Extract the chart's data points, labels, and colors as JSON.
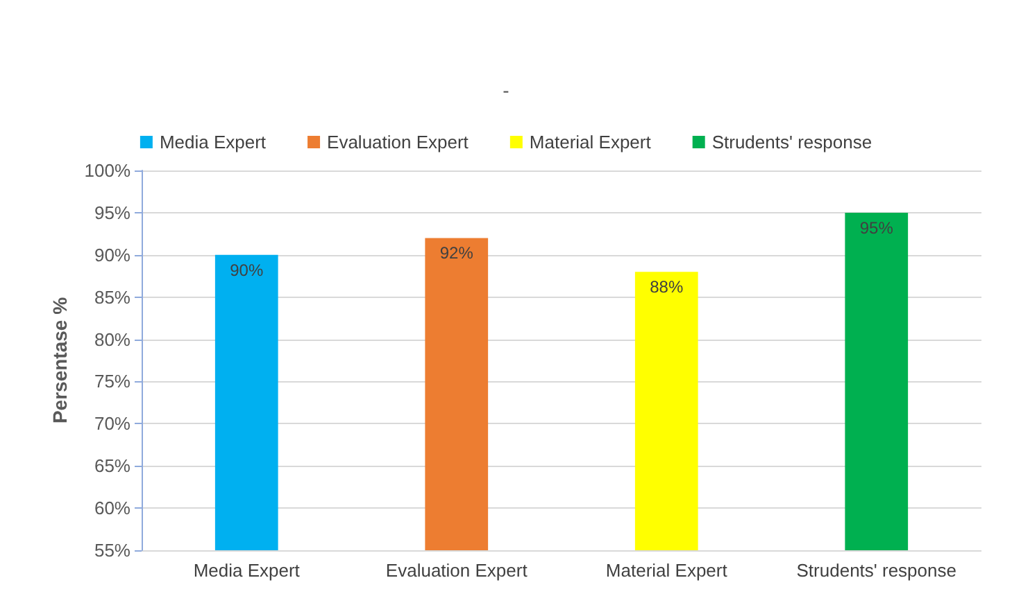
{
  "chart_data": {
    "type": "bar",
    "title": "-",
    "ylabel": "Persentase %",
    "categories": [
      "Media Expert",
      "Evaluation Expert",
      "Material Expert",
      "Strudents' response"
    ],
    "series": [
      {
        "name": "Media Expert",
        "color": "#00b0f0",
        "values": [
          90,
          null,
          null,
          null
        ],
        "value_labels": [
          "90%",
          null,
          null,
          null
        ]
      },
      {
        "name": "Evaluation Expert",
        "color": "#ed7d31",
        "values": [
          null,
          92,
          null,
          null
        ],
        "value_labels": [
          null,
          "92%",
          null,
          null
        ]
      },
      {
        "name": "Material Expert",
        "color": "#ffff00",
        "values": [
          null,
          null,
          88,
          null
        ],
        "value_labels": [
          null,
          null,
          "88%",
          null
        ]
      },
      {
        "name": "Strudents' response",
        "color": "#00b050",
        "values": [
          null,
          null,
          null,
          95
        ],
        "value_labels": [
          null,
          null,
          null,
          "95%"
        ]
      }
    ],
    "stacked": true,
    "ylim": [
      55,
      100
    ],
    "yticks": [
      {
        "value": 55,
        "label": "55%"
      },
      {
        "value": 60,
        "label": "60%"
      },
      {
        "value": 65,
        "label": "65%"
      },
      {
        "value": 70,
        "label": "70%"
      },
      {
        "value": 75,
        "label": "75%"
      },
      {
        "value": 80,
        "label": "80%"
      },
      {
        "value": 85,
        "label": "85%"
      },
      {
        "value": 90,
        "label": "90%"
      },
      {
        "value": 95,
        "label": "95%"
      },
      {
        "value": 100,
        "label": "100%"
      }
    ],
    "grid": "y",
    "legend": "top"
  }
}
